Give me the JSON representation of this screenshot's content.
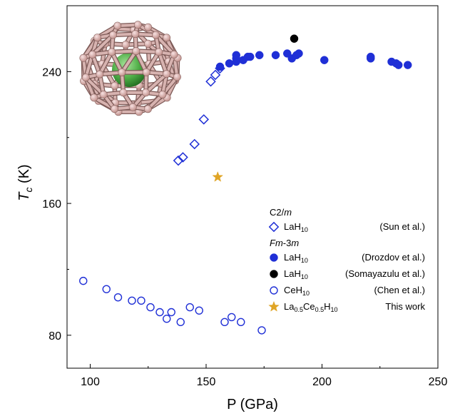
{
  "chart_data": {
    "type": "scatter",
    "xlabel": "P (GPa)",
    "ylabel": "T",
    "ylabel_sub": "c",
    "ylabel_unit": " (K)",
    "xlim": [
      90,
      250
    ],
    "ylim": [
      60,
      280
    ],
    "xticks": [
      100,
      150,
      200,
      250
    ],
    "yticks": [
      80,
      160,
      240
    ],
    "groups": [
      {
        "label_main": "C2/",
        "label_italic": "m",
        "kind": "c2m"
      },
      {
        "label_italic_prefix": "Fm",
        "label_main": "-3",
        "label_italic": "m",
        "kind": "fm3m"
      }
    ],
    "series": [
      {
        "group": 0,
        "formula": "LaH",
        "formula_sub": "10",
        "source": "(Sun et al.)",
        "marker": "diamond-open",
        "color": "#1f2fd6",
        "points": [
          [
            138,
            186
          ],
          [
            140,
            188
          ],
          [
            145,
            196
          ],
          [
            149,
            211
          ],
          [
            152,
            234
          ],
          [
            154,
            238
          ],
          [
            156,
            242
          ]
        ]
      },
      {
        "group": 1,
        "formula": "LaH",
        "formula_sub": "10",
        "source": "(Drozdov et al.)",
        "marker": "circle-filled",
        "color": "#1f2fd6",
        "points": [
          [
            156,
            243
          ],
          [
            160,
            245
          ],
          [
            163,
            246
          ],
          [
            163,
            248
          ],
          [
            163,
            250
          ],
          [
            166,
            247
          ],
          [
            168,
            249
          ],
          [
            169,
            249
          ],
          [
            173,
            250
          ],
          [
            180,
            250
          ],
          [
            185,
            251
          ],
          [
            187,
            248
          ],
          [
            189,
            250
          ],
          [
            190,
            251
          ],
          [
            201,
            247
          ],
          [
            221,
            248
          ],
          [
            221,
            249
          ],
          [
            230,
            246
          ],
          [
            232,
            245
          ],
          [
            233,
            244
          ],
          [
            237,
            244
          ]
        ]
      },
      {
        "group": 1,
        "formula": "LaH",
        "formula_sub": "10",
        "source": "(Somayazulu et al.)",
        "marker": "circle-filled",
        "color": "#000000",
        "points": [
          [
            188,
            260
          ]
        ]
      },
      {
        "group": 1,
        "formula": "CeH",
        "formula_sub": "10",
        "source": "(Chen et al.)",
        "marker": "circle-open",
        "color": "#1f2fd6",
        "points": [
          [
            97,
            113
          ],
          [
            107,
            108
          ],
          [
            112,
            103
          ],
          [
            118,
            101
          ],
          [
            122,
            101
          ],
          [
            126,
            97
          ],
          [
            130,
            94
          ],
          [
            133,
            90
          ],
          [
            135,
            94
          ],
          [
            139,
            88
          ],
          [
            143,
            97
          ],
          [
            147,
            95
          ],
          [
            158,
            88
          ],
          [
            161,
            91
          ],
          [
            165,
            88
          ],
          [
            174,
            83
          ]
        ]
      },
      {
        "group": 1,
        "formula": "La",
        "formula_parts": [
          [
            "La",
            ""
          ],
          [
            "0.5",
            "sub"
          ],
          [
            "Ce",
            ""
          ],
          [
            "0.5",
            "sub"
          ],
          [
            "H",
            ""
          ],
          [
            "10",
            "sub"
          ]
        ],
        "source": "This work",
        "marker": "star",
        "color": "#e0a526",
        "points": [
          [
            155,
            176
          ]
        ]
      }
    ]
  }
}
